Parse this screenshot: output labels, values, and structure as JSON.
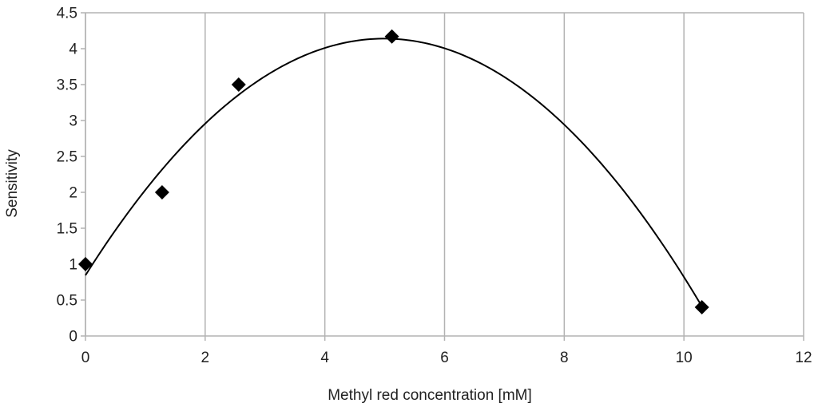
{
  "chart_data": {
    "type": "scatter",
    "title": "",
    "xlabel": "Methyl red concentration [mM]",
    "ylabel": "Sensitivity",
    "xlim": [
      0,
      12
    ],
    "ylim": [
      0,
      4.5
    ],
    "x_ticks": [
      "0",
      "2",
      "4",
      "6",
      "8",
      "10",
      "12"
    ],
    "y_ticks": [
      "0",
      "0.5",
      "1",
      "1.5",
      "2",
      "2.5",
      "3",
      "3.5",
      "4",
      "4.5"
    ],
    "grid": "vertical",
    "legend": "none",
    "marker": "diamond",
    "trendline": "polynomial",
    "series": [
      {
        "x": [
          0,
          1.28,
          2.56,
          5.12,
          10.3
        ],
        "y": [
          1.0,
          2.0,
          3.5,
          4.17,
          0.4
        ]
      }
    ],
    "colors": {
      "marker": "#000000",
      "trendline": "#000000",
      "grid": "#b3b3b3",
      "axis": "#b3b3b3"
    }
  }
}
